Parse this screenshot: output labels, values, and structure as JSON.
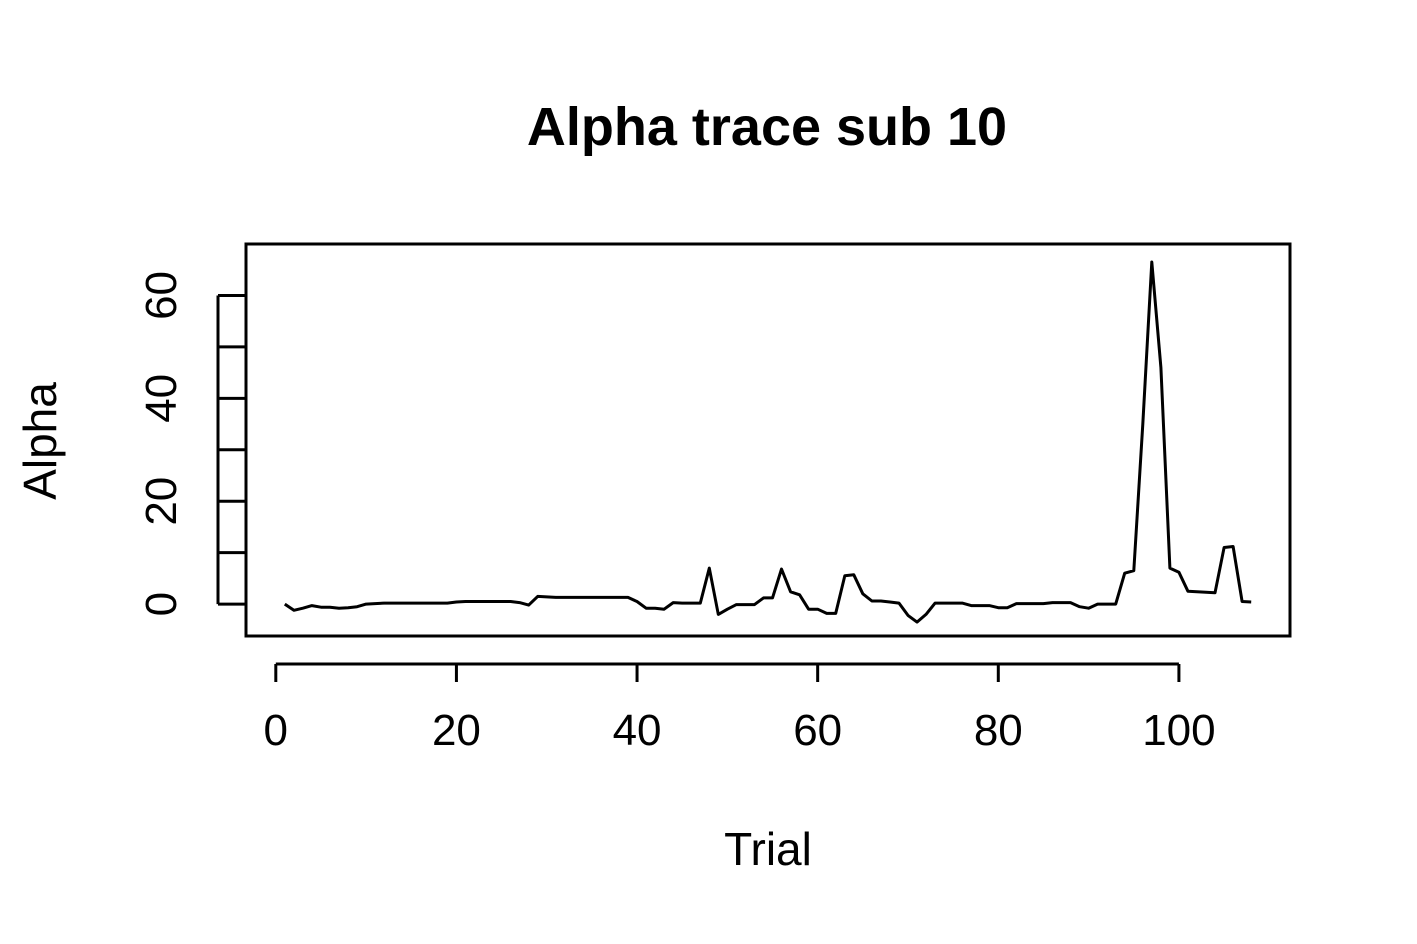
{
  "chart_data": {
    "type": "line",
    "title": "Alpha trace sub 10",
    "xlabel": "Trial",
    "ylabel": "Alpha",
    "xlim": [
      -3.3,
      112.3
    ],
    "ylim": [
      -6.2,
      70
    ],
    "xticks": [
      0,
      20,
      40,
      60,
      80,
      100
    ],
    "yticks": [
      0,
      20,
      40,
      60
    ],
    "yminor": [
      10,
      30,
      50
    ],
    "grid": false,
    "series": [
      {
        "x": [
          1,
          2,
          3,
          4,
          5,
          6,
          7,
          8,
          9,
          10,
          11,
          12,
          13,
          14,
          15,
          16,
          17,
          18,
          19,
          20,
          21,
          22,
          23,
          24,
          25,
          26,
          27,
          28,
          29,
          30,
          31,
          32,
          33,
          34,
          35,
          36,
          37,
          38,
          39,
          40,
          41,
          42,
          43,
          44,
          45,
          46,
          47,
          48,
          49,
          50,
          51,
          52,
          53,
          54,
          55,
          56,
          57,
          58,
          59,
          60,
          61,
          62,
          63,
          64,
          65,
          66,
          67,
          68,
          69,
          70,
          71,
          72,
          73,
          74,
          75,
          76,
          77,
          78,
          79,
          80,
          81,
          82,
          83,
          84,
          85,
          86,
          87,
          88,
          89,
          90,
          91,
          92,
          93,
          94,
          95,
          96,
          97,
          98,
          99,
          100,
          101,
          102,
          103,
          104,
          105,
          106,
          107,
          108
        ],
        "y": [
          0,
          -1.2,
          -0.8,
          -0.3,
          -0.6,
          -0.6,
          -0.8,
          -0.7,
          -0.5,
          0,
          0.1,
          0.2,
          0.2,
          0.2,
          0.2,
          0.2,
          0.2,
          0.2,
          0.2,
          0.4,
          0.5,
          0.5,
          0.5,
          0.5,
          0.5,
          0.5,
          0.3,
          -0.2,
          1.5,
          1.4,
          1.3,
          1.3,
          1.3,
          1.3,
          1.3,
          1.3,
          1.3,
          1.3,
          1.3,
          0.5,
          -0.8,
          -0.8,
          -1.0,
          0.3,
          0.2,
          0.2,
          0.2,
          7.0,
          -2.0,
          -1.0,
          -0.1,
          -0.1,
          -0.1,
          1.2,
          1.2,
          6.8,
          2.4,
          1.8,
          -1.0,
          -1.0,
          -1.8,
          -1.8,
          5.5,
          5.7,
          2.0,
          0.6,
          0.6,
          0.4,
          0.2,
          -2.2,
          -3.5,
          -2.0,
          0.2,
          0.2,
          0.2,
          0.2,
          -0.3,
          -0.3,
          -0.3,
          -0.7,
          -0.7,
          0.1,
          0.1,
          0.1,
          0.1,
          0.3,
          0.3,
          0.3,
          -0.5,
          -0.8,
          0,
          0,
          0,
          6.0,
          6.5,
          35.0,
          66.5,
          46.0,
          7.0,
          6.2,
          2.5,
          2.4,
          2.3,
          2.2,
          11.0,
          11.2,
          0.5,
          0.4
        ]
      }
    ]
  }
}
